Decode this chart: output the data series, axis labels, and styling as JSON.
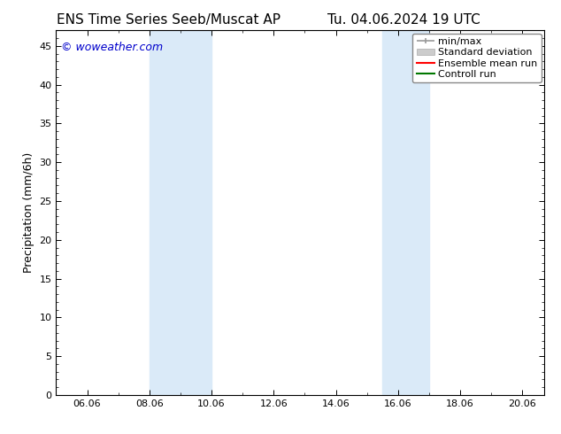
{
  "title_left": "ENS Time Series Seeb/Muscat AP",
  "title_right": "Tu. 04.06.2024 19 UTC",
  "ylabel": "Precipitation (mm/6h)",
  "watermark": "© woweather.com",
  "watermark_color": "#0000cc",
  "xlim_left": 5.0,
  "xlim_right": 20.7,
  "ylim_bottom": 0,
  "ylim_top": 47,
  "yticks": [
    0,
    5,
    10,
    15,
    20,
    25,
    30,
    35,
    40,
    45
  ],
  "xticks": [
    6.0,
    8.0,
    10.0,
    12.0,
    14.0,
    16.0,
    18.0,
    20.0
  ],
  "xticklabels": [
    "06.06",
    "08.06",
    "10.06",
    "12.06",
    "14.06",
    "16.06",
    "18.06",
    "20.06"
  ],
  "shaded_bands": [
    {
      "x_start": 8.0,
      "x_end": 10.0
    },
    {
      "x_start": 15.5,
      "x_end": 17.0
    }
  ],
  "shaded_color": "#daeaf8",
  "bg_color": "#ffffff",
  "legend_items": [
    {
      "label": "min/max",
      "color": "#aaaaaa",
      "type": "line_with_caps"
    },
    {
      "label": "Standard deviation",
      "color": "#cccccc",
      "type": "filled_box"
    },
    {
      "label": "Ensemble mean run",
      "color": "#ff0000",
      "type": "line"
    },
    {
      "label": "Controll run",
      "color": "#007700",
      "type": "line"
    }
  ],
  "font_size_title": 11,
  "font_size_labels": 9,
  "font_size_ticks": 8,
  "font_size_legend": 8,
  "font_size_watermark": 9
}
